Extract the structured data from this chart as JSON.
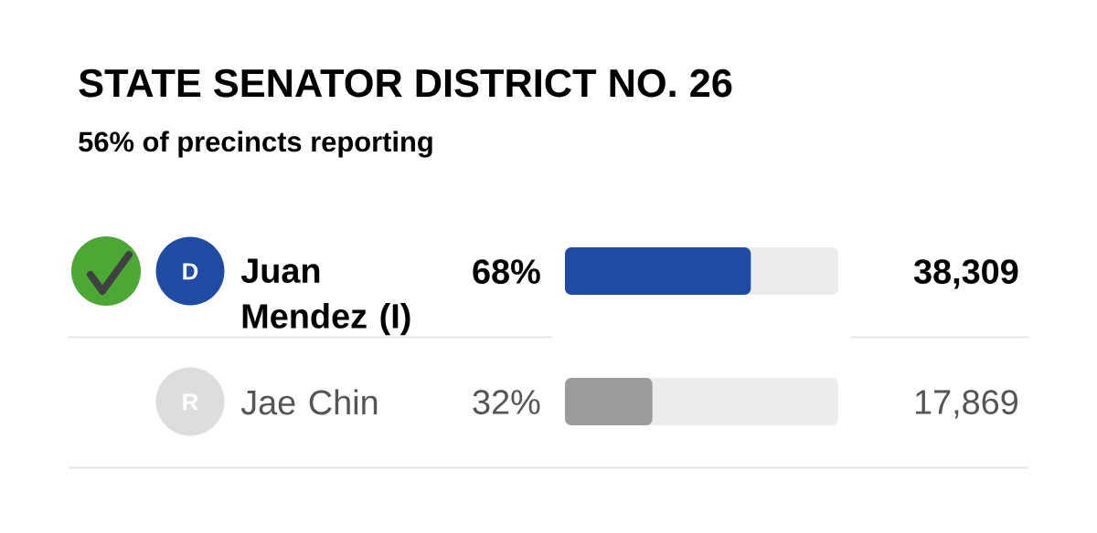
{
  "chart_data": {
    "type": "bar",
    "orientation": "horizontal",
    "title": "STATE SENATOR DISTRICT NO. 26",
    "subtitle": "56% of precincts reporting",
    "categories": [
      "Juan Mendez (I)",
      "Jae Chin"
    ],
    "values": [
      68,
      32
    ],
    "colors": [
      "#1f4ba3",
      "#9b9b9b"
    ],
    "value_labels": [
      "68%",
      "32%"
    ],
    "xlim": [
      0,
      100
    ],
    "tick_labels": "y",
    "annotations": [
      "D",
      "38,309",
      "R",
      "17,869"
    ]
  }
}
